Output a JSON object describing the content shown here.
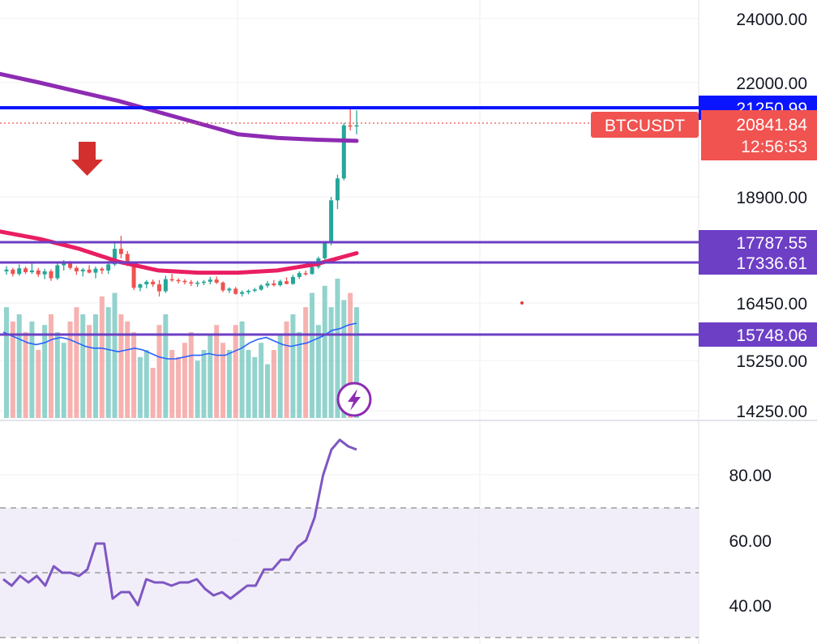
{
  "chart_data": [
    {
      "type": "candlestick",
      "symbol": "BTCUSDT",
      "price_axis_ticks": [
        "24000.00",
        "22000.00",
        "18900.00",
        "16450.00",
        "15250.00",
        "14250.00"
      ],
      "horizontal_levels": [
        {
          "value": "21250.99",
          "color": "#0a14ff"
        },
        {
          "value": "17787.55",
          "color": "#6c3fc5"
        },
        {
          "value": "17336.61",
          "color": "#6c3fc5"
        },
        {
          "value": "15748.06",
          "color": "#6c3fc5"
        }
      ],
      "last_price": {
        "value": "20841.84",
        "countdown": "12:56:53",
        "color": "#f05350"
      },
      "moving_averages": [
        {
          "color": "#8e2bb3",
          "values": [
            22270,
            22000,
            21750,
            21500,
            21200,
            20900,
            20600,
            20500,
            20450,
            20420
          ]
        },
        {
          "color": "#e91e63",
          "values": [
            18100,
            17930,
            17700,
            17400,
            17200,
            17150,
            17150,
            17200,
            17350,
            17600
          ]
        }
      ],
      "ohlc": [
        [
          17180,
          17300,
          17100,
          17220
        ],
        [
          17220,
          17260,
          17060,
          17120
        ],
        [
          17120,
          17340,
          17080,
          17250
        ],
        [
          17250,
          17290,
          17120,
          17160
        ],
        [
          17160,
          17400,
          17120,
          17200
        ],
        [
          17200,
          17260,
          17050,
          17110
        ],
        [
          17110,
          17240,
          17000,
          17180
        ],
        [
          17180,
          17230,
          16960,
          17020
        ],
        [
          17020,
          17390,
          16980,
          17320
        ],
        [
          17320,
          17440,
          17200,
          17380
        ],
        [
          17380,
          17420,
          17220,
          17260
        ],
        [
          17260,
          17300,
          17100,
          17180
        ],
        [
          17180,
          17260,
          17060,
          17220
        ],
        [
          17220,
          17320,
          17130,
          17150
        ],
        [
          17150,
          17290,
          17020,
          17240
        ],
        [
          17240,
          17280,
          17120,
          17200
        ],
        [
          17200,
          17420,
          17120,
          17340
        ],
        [
          17340,
          17840,
          17300,
          17700
        ],
        [
          17700,
          18000,
          17480,
          17580
        ],
        [
          17580,
          17650,
          17300,
          17350
        ],
        [
          17350,
          17400,
          16750,
          16800
        ],
        [
          16800,
          16900,
          16720,
          16880
        ],
        [
          16880,
          16980,
          16790,
          16940
        ],
        [
          16940,
          16990,
          16820,
          16880
        ],
        [
          16880,
          16980,
          16600,
          16720
        ],
        [
          16720,
          17080,
          16680,
          17000
        ],
        [
          17000,
          17120,
          16940,
          16980
        ],
        [
          16980,
          17020,
          16900,
          16960
        ],
        [
          16960,
          17000,
          16880,
          16930
        ],
        [
          16930,
          16980,
          16840,
          16900
        ],
        [
          16900,
          16960,
          16820,
          16920
        ],
        [
          16920,
          16980,
          16860,
          16940
        ],
        [
          16940,
          17050,
          16880,
          16990
        ],
        [
          16990,
          17060,
          16890,
          16920
        ],
        [
          16920,
          16950,
          16700,
          16740
        ],
        [
          16740,
          16810,
          16680,
          16780
        ],
        [
          16780,
          16820,
          16640,
          16660
        ],
        [
          16660,
          16740,
          16600,
          16700
        ],
        [
          16700,
          16760,
          16650,
          16730
        ],
        [
          16730,
          16800,
          16700,
          16760
        ],
        [
          16760,
          16880,
          16730,
          16850
        ],
        [
          16850,
          16960,
          16800,
          16900
        ],
        [
          16900,
          16980,
          16830,
          16860
        ],
        [
          16860,
          16990,
          16830,
          16950
        ],
        [
          16950,
          17040,
          16880,
          16890
        ],
        [
          16890,
          17100,
          16870,
          17050
        ],
        [
          17050,
          17180,
          17000,
          17140
        ],
        [
          17140,
          17200,
          17080,
          17120
        ],
        [
          17120,
          17320,
          17100,
          17280
        ],
        [
          17280,
          17520,
          17240,
          17480
        ],
        [
          17480,
          17870,
          17420,
          17830
        ],
        [
          17830,
          18900,
          17780,
          18820
        ],
        [
          18820,
          19500,
          18620,
          19400
        ],
        [
          19400,
          20900,
          19350,
          20840
        ],
        [
          20840,
          21320,
          20700,
          20820
        ],
        [
          20820,
          21250,
          20600,
          20841
        ]
      ],
      "volume": [
        62,
        58,
        60,
        55,
        58,
        50,
        57,
        60,
        55,
        52,
        58,
        62,
        60,
        57,
        60,
        65,
        62,
        66,
        60,
        58,
        55,
        48,
        50,
        45,
        57,
        60,
        50,
        48,
        52,
        55,
        47,
        50,
        54,
        57,
        52,
        50,
        57,
        58,
        50,
        48,
        52,
        46,
        50,
        54,
        58,
        60,
        55,
        62,
        66,
        57,
        68,
        62,
        70,
        64,
        66,
        62
      ],
      "volume_avg": [
        70,
        68,
        66,
        64,
        63,
        64,
        66,
        67,
        66,
        64,
        62,
        61,
        61,
        60,
        59,
        60,
        61,
        60,
        58,
        56,
        55,
        55,
        56,
        57,
        57,
        58,
        57,
        57,
        59,
        61,
        64,
        66,
        67,
        65,
        63,
        62,
        63,
        64,
        66,
        68,
        71,
        72,
        74,
        75
      ],
      "rsi": {
        "ticks": [
          "80.00",
          "60.00",
          "40.00"
        ],
        "band": [
          30,
          70
        ],
        "mid": 50,
        "values": [
          48,
          46,
          49,
          47,
          49,
          46,
          52,
          50,
          50,
          49,
          51,
          59,
          59,
          42,
          44,
          44,
          40,
          48,
          47,
          47,
          46,
          47,
          47,
          48,
          45,
          43,
          44,
          42,
          44,
          46,
          46,
          51,
          51,
          54,
          54,
          58,
          60,
          67,
          80,
          88,
          91,
          89,
          88
        ]
      }
    }
  ]
}
